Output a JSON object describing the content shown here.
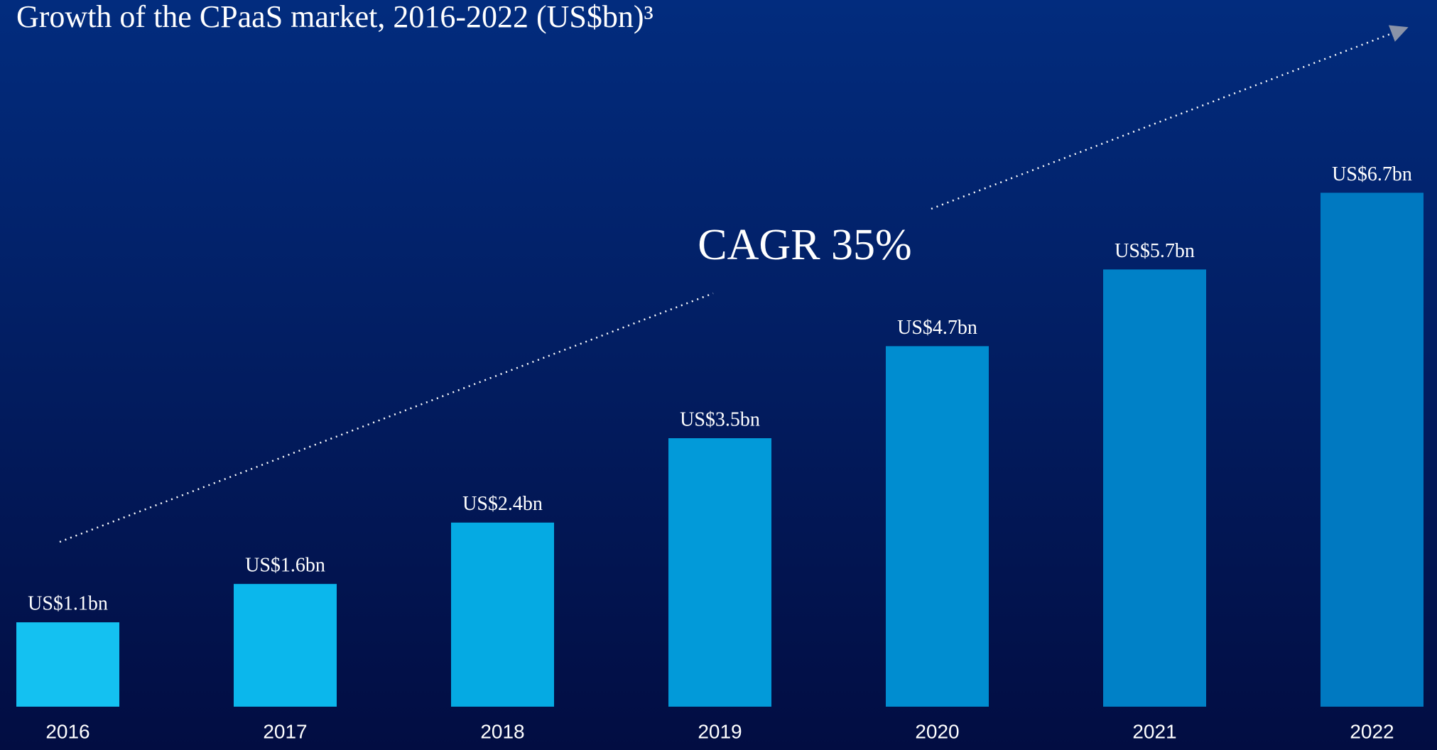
{
  "chart_data": {
    "type": "bar",
    "title": "Growth of the CPaaS market, 2016-2022 (US$bn)³",
    "annotation": "CAGR 35%",
    "categories": [
      "2016",
      "2017",
      "2018",
      "2019",
      "2020",
      "2021",
      "2022"
    ],
    "values": [
      1.1,
      1.6,
      2.4,
      3.5,
      4.7,
      5.7,
      6.7
    ],
    "value_labels": [
      "US$1.1bn",
      "US$1.6bn",
      "US$2.4bn",
      "US$3.5bn",
      "US$4.7bn",
      "US$5.7bn",
      "US$6.7bn"
    ],
    "colors": [
      "#14c1f1",
      "#0bb7ec",
      "#05aae3",
      "#029ad9",
      "#008dd0",
      "#0081c7",
      "#0079c1"
    ]
  }
}
